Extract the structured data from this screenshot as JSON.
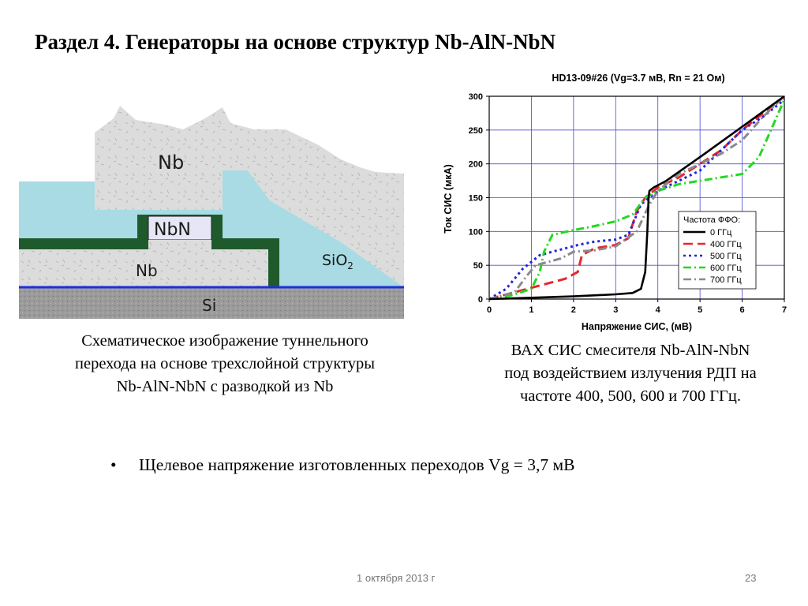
{
  "slide": {
    "title": "Раздел 4. Генераторы на основе структур Nb-AlN-NbN",
    "bullet": "Щелевое напряжение изготовленных переходов Vg = 3,7 мВ",
    "bullet_symbol": "•",
    "footer_date": "1 октября 2013 г",
    "page_number": "23"
  },
  "schematic": {
    "labels": {
      "nb_top": "Nb",
      "nbn": "NbN",
      "nb_bottom": "Nb",
      "sio2": "SiO",
      "sio2_sub": "2",
      "si": "Si"
    },
    "colors": {
      "nb": "#dcdcdc",
      "sio2": "#a8dbe3",
      "insulator": "#1f5a2c",
      "nbn": "#e6e6f6",
      "si": "#9b9b9b",
      "interface": "#1d2fd8"
    },
    "caption": [
      "Схематическое изображение туннельного",
      "перехода на основе трехслойной структуры",
      "Nb-AlN-NbN с разводкой из Nb"
    ]
  },
  "plot_caption": [
    "ВАХ СИС смесителя Nb-AlN-NbN",
    "под воздействием излучения РДП на",
    "частоте 400, 500, 600 и 700 ГГц."
  ],
  "chart_data": {
    "type": "line",
    "title": "HD13-09#26 (Vg=3.7 мВ, Rn = 21 Ом)",
    "xlabel": "Напряжение СИС, (мВ)",
    "ylabel": "Ток СИС (мкА)",
    "xlim": [
      0,
      7
    ],
    "ylim": [
      0,
      300
    ],
    "xticks": [
      0,
      1,
      2,
      3,
      4,
      5,
      6,
      7
    ],
    "yticks": [
      0,
      50,
      100,
      150,
      200,
      250,
      300
    ],
    "grid": true,
    "legend": {
      "title": "Частота ФФО:",
      "position": "center-right"
    },
    "series": [
      {
        "name": "0 ГГц",
        "color": "#000000",
        "dash": "solid",
        "x": [
          0,
          1,
          2,
          3,
          3.4,
          3.6,
          3.7,
          3.75,
          3.78,
          3.8,
          3.9,
          4.2,
          5,
          6,
          7
        ],
        "y": [
          0,
          2,
          4,
          7,
          9,
          15,
          40,
          100,
          150,
          160,
          165,
          175,
          210,
          255,
          300
        ]
      },
      {
        "name": "400 ГГц",
        "color": "#e8262c",
        "dash": "12 6",
        "x": [
          0,
          0.6,
          1.2,
          1.8,
          2.1,
          2.2,
          2.5,
          3,
          3.3,
          3.5,
          3.7,
          4,
          4.5,
          5,
          5.5,
          6,
          6.5,
          7
        ],
        "y": [
          0,
          10,
          20,
          30,
          40,
          65,
          75,
          80,
          90,
          130,
          150,
          165,
          180,
          200,
          220,
          250,
          275,
          300
        ]
      },
      {
        "name": "500 ГГц",
        "color": "#2424d8",
        "dash": "3 4",
        "x": [
          0,
          0.4,
          0.6,
          0.8,
          1.0,
          1.2,
          1.5,
          1.8,
          2.1,
          2.5,
          3,
          3.3,
          3.6,
          4,
          4.5,
          5,
          5.5,
          6,
          6.5,
          7
        ],
        "y": [
          0,
          15,
          30,
          45,
          55,
          65,
          70,
          75,
          80,
          85,
          88,
          95,
          140,
          160,
          175,
          190,
          220,
          250,
          270,
          295
        ]
      },
      {
        "name": "600 ГГц",
        "color": "#22d822",
        "dash": "10 4 2 4",
        "x": [
          0,
          0.5,
          1,
          1.2,
          1.3,
          1.5,
          2,
          2.5,
          3,
          3.4,
          3.7,
          4,
          4.5,
          5,
          5.5,
          6,
          6.4,
          7
        ],
        "y": [
          0,
          5,
          15,
          40,
          70,
          95,
          102,
          108,
          115,
          125,
          150,
          160,
          170,
          175,
          180,
          185,
          210,
          295
        ]
      },
      {
        "name": "700 ГГц",
        "color": "#8a8a8a",
        "dash": "10 4 2 4",
        "x": [
          0,
          0.6,
          0.9,
          1.1,
          1.4,
          1.7,
          2,
          2.5,
          3,
          3.5,
          3.8,
          4,
          4.5,
          5,
          5.5,
          6,
          6.5,
          7
        ],
        "y": [
          0,
          10,
          35,
          50,
          55,
          60,
          70,
          72,
          78,
          100,
          140,
          160,
          185,
          200,
          215,
          235,
          270,
          300
        ]
      }
    ]
  }
}
